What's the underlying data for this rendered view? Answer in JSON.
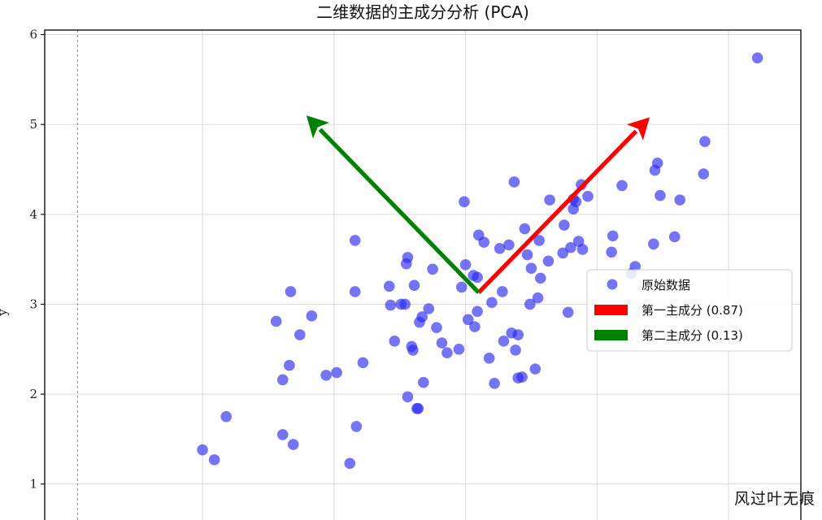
{
  "watermark": "风过叶无痕",
  "chart_data": {
    "type": "scatter",
    "title": "二维数据的主成分分析 (PCA)",
    "xlabel": "",
    "ylabel": "y",
    "xlim": [
      -3.2,
      2.55
    ],
    "ylim": [
      0.6,
      6.05
    ],
    "yticks": [
      1,
      2,
      3,
      4,
      5,
      6
    ],
    "xgrid": [
      -2,
      -1,
      0,
      1,
      2
    ],
    "zero_line_x": -2.95,
    "grid": true,
    "legend_position": "center-right",
    "colors": {
      "points": "#2a2af0",
      "pc1": "#ff0000",
      "pc2": "#008000"
    },
    "series": [
      {
        "name": "原始数据",
        "kind": "points",
        "points": [
          [
            -2.0,
            1.38
          ],
          [
            -1.91,
            1.27
          ],
          [
            -1.82,
            1.75
          ],
          [
            -1.39,
            1.55
          ],
          [
            -1.31,
            1.44
          ],
          [
            -1.39,
            2.16
          ],
          [
            -1.34,
            2.32
          ],
          [
            -1.26,
            2.66
          ],
          [
            -1.44,
            2.81
          ],
          [
            -1.17,
            2.87
          ],
          [
            -1.33,
            3.14
          ],
          [
            -1.06,
            2.21
          ],
          [
            -0.98,
            2.24
          ],
          [
            -0.88,
            1.23
          ],
          [
            -0.83,
            1.64
          ],
          [
            -0.78,
            2.35
          ],
          [
            -0.84,
            3.14
          ],
          [
            -0.84,
            3.71
          ],
          [
            -0.58,
            3.2
          ],
          [
            -0.57,
            2.99
          ],
          [
            -0.54,
            2.59
          ],
          [
            -0.49,
            3.0
          ],
          [
            -0.46,
            3.0
          ],
          [
            -0.45,
            3.45
          ],
          [
            -0.44,
            3.52
          ],
          [
            -0.41,
            2.53
          ],
          [
            -0.4,
            2.49
          ],
          [
            -0.39,
            3.21
          ],
          [
            -0.44,
            1.97
          ],
          [
            -0.37,
            1.84
          ],
          [
            -0.36,
            1.84
          ],
          [
            -0.35,
            2.8
          ],
          [
            -0.33,
            2.86
          ],
          [
            -0.32,
            2.13
          ],
          [
            -0.28,
            2.95
          ],
          [
            -0.25,
            3.39
          ],
          [
            -0.22,
            2.74
          ],
          [
            -0.18,
            2.57
          ],
          [
            -0.14,
            2.46
          ],
          [
            -0.05,
            2.5
          ],
          [
            -0.03,
            3.19
          ],
          [
            -0.01,
            4.14
          ],
          [
            0.0,
            3.44
          ],
          [
            0.02,
            2.83
          ],
          [
            0.06,
            3.32
          ],
          [
            0.07,
            2.75
          ],
          [
            0.09,
            3.3
          ],
          [
            0.09,
            2.92
          ],
          [
            0.1,
            3.77
          ],
          [
            0.14,
            3.69
          ],
          [
            0.18,
            2.4
          ],
          [
            0.2,
            3.02
          ],
          [
            0.22,
            2.12
          ],
          [
            0.26,
            3.62
          ],
          [
            0.28,
            3.14
          ],
          [
            0.29,
            2.59
          ],
          [
            0.33,
            3.66
          ],
          [
            0.35,
            2.68
          ],
          [
            0.37,
            4.36
          ],
          [
            0.38,
            2.49
          ],
          [
            0.4,
            2.66
          ],
          [
            0.4,
            2.18
          ],
          [
            0.43,
            2.19
          ],
          [
            0.45,
            3.84
          ],
          [
            0.47,
            3.55
          ],
          [
            0.49,
            3.0
          ],
          [
            0.5,
            3.4
          ],
          [
            0.53,
            2.28
          ],
          [
            0.55,
            3.07
          ],
          [
            0.56,
            3.71
          ],
          [
            0.57,
            3.29
          ],
          [
            0.64,
            4.16
          ],
          [
            0.63,
            3.48
          ],
          [
            0.74,
            3.57
          ],
          [
            0.75,
            3.88
          ],
          [
            0.8,
            3.63
          ],
          [
            0.82,
            4.06
          ],
          [
            0.84,
            4.14
          ],
          [
            0.82,
            4.17
          ],
          [
            0.86,
            3.7
          ],
          [
            0.88,
            4.33
          ],
          [
            0.89,
            3.61
          ],
          [
            0.93,
            4.2
          ],
          [
            0.78,
            2.91
          ],
          [
            1.11,
            3.58
          ],
          [
            1.12,
            3.76
          ],
          [
            1.19,
            4.32
          ],
          [
            1.26,
            3.34
          ],
          [
            1.29,
            3.42
          ],
          [
            1.43,
            3.67
          ],
          [
            1.44,
            4.49
          ],
          [
            1.46,
            4.57
          ],
          [
            1.48,
            4.21
          ],
          [
            1.59,
            3.75
          ],
          [
            1.63,
            4.16
          ],
          [
            1.81,
            4.45
          ],
          [
            1.82,
            4.81
          ],
          [
            2.22,
            5.74
          ]
        ]
      },
      {
        "name": "第一主成分 (0.87)",
        "kind": "arrow",
        "from": [
          0.1,
          3.13
        ],
        "to": [
          1.4,
          5.08
        ]
      },
      {
        "name": "第二主成分 (0.13)",
        "kind": "arrow",
        "from": [
          0.1,
          3.13
        ],
        "to": [
          -1.21,
          5.1
        ]
      }
    ]
  }
}
